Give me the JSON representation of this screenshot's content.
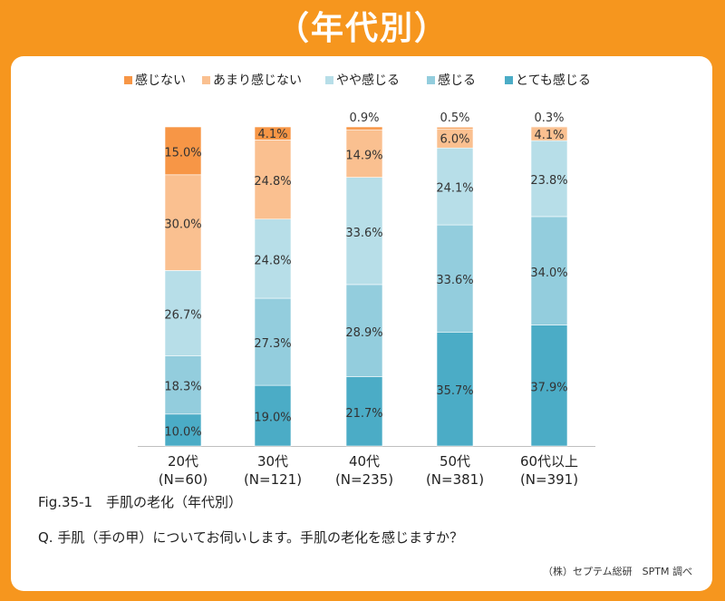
{
  "header": {
    "title": "（年代別）"
  },
  "caption": {
    "figure": "Fig.35-1　手肌の老化（年代別）",
    "question": "Q. 手肌（手の甲）についてお伺いします。手肌の老化を感じますか？",
    "source": "（株）セプテム総研　SPTM 調べ"
  },
  "chart_data": {
    "type": "bar",
    "stacked": true,
    "percent": true,
    "ylim": [
      0,
      100
    ],
    "legend_position": "top",
    "categories": [
      "20代",
      "30代",
      "40代",
      "50代",
      "60代以上"
    ],
    "category_n": [
      "(N=60)",
      "(N=121)",
      "(N=235)",
      "(N=381)",
      "(N=391)"
    ],
    "series": [
      {
        "name": "とても感じる",
        "color": "#4bacc6",
        "values": [
          10.0,
          19.0,
          21.7,
          35.7,
          37.9
        ],
        "labels": [
          "10.0%",
          "19.0%",
          "21.7%",
          "35.7%",
          "37.9%"
        ]
      },
      {
        "name": "感じる",
        "color": "#93cddd",
        "values": [
          18.3,
          27.3,
          28.9,
          33.6,
          34.0
        ],
        "labels": [
          "18.3%",
          "27.3%",
          "28.9%",
          "33.6%",
          "34.0%"
        ]
      },
      {
        "name": "やや感じる",
        "color": "#b7dee8",
        "values": [
          26.7,
          24.8,
          33.6,
          24.1,
          23.8
        ],
        "labels": [
          "26.7%",
          "24.8%",
          "33.6%",
          "24.1%",
          "23.8%"
        ]
      },
      {
        "name": "あまり感じない",
        "color": "#fac090",
        "values": [
          30.0,
          24.8,
          14.9,
          6.0,
          4.1
        ],
        "labels": [
          "30.0%",
          "24.8%",
          "14.9%",
          "6.0%",
          "4.1%"
        ]
      },
      {
        "name": "感じない",
        "color": "#f79646",
        "values": [
          15.0,
          4.1,
          0.9,
          0.5,
          0.3
        ],
        "labels": [
          "15.0%",
          "4.1%",
          "0.9%",
          "0.5%",
          "0.3%"
        ]
      }
    ],
    "legend_order": [
      "感じない",
      "あまり感じない",
      "やや感じる",
      "感じる",
      "とても感じる"
    ]
  }
}
